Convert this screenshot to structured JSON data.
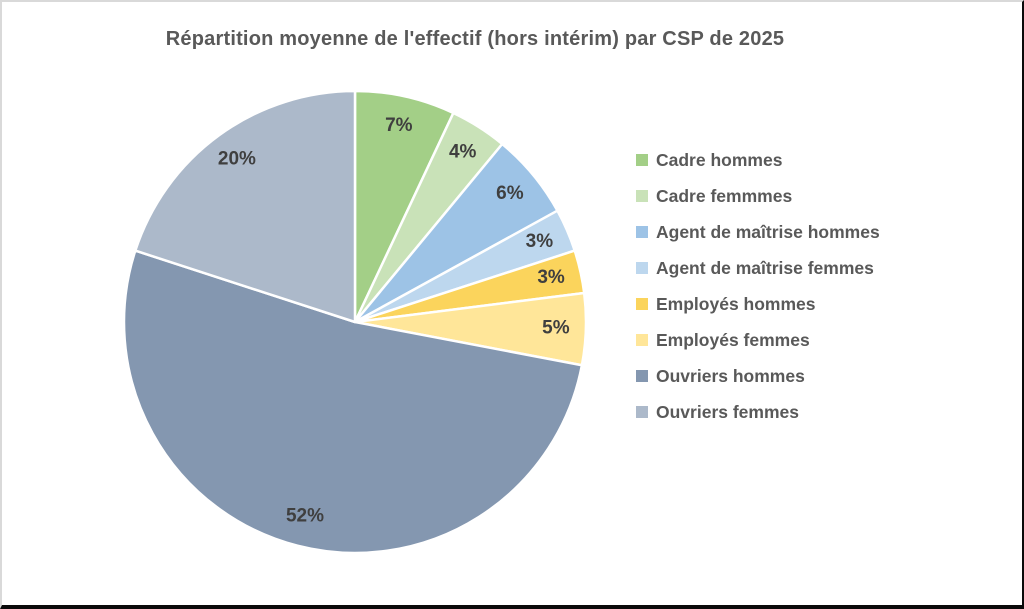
{
  "chart_data": {
    "type": "pie",
    "title": "Répartition moyenne de l'effectif (hors intérim) par CSP de 2025",
    "start_angle_deg": 0,
    "direction": "clockwise",
    "legend_position": "right",
    "title_color": "#595959",
    "data_label_color": "#3f3f3f",
    "slices": [
      {
        "label": "Cadre hommes",
        "value": 7,
        "data_label": "7%",
        "color": "#A3CF87"
      },
      {
        "label": "Cadre femmmes",
        "value": 4,
        "data_label": "4%",
        "color": "#C9E2B8"
      },
      {
        "label": "Agent de maîtrise hommes",
        "value": 6,
        "data_label": "6%",
        "color": "#9DC3E6"
      },
      {
        "label": "Agent de maîtrise femmes",
        "value": 3,
        "data_label": "3%",
        "color": "#BDD7EE"
      },
      {
        "label": "Employés hommes",
        "value": 3,
        "data_label": "3%",
        "color": "#FBD45C"
      },
      {
        "label": "Employés femmes",
        "value": 5,
        "data_label": "5%",
        "color": "#FFE699"
      },
      {
        "label": "Ouvriers hommes",
        "value": 52,
        "data_label": "52%",
        "color": "#8497B0"
      },
      {
        "label": "Ouvriers femmes",
        "value": 20,
        "data_label": "20%",
        "color": "#ACB9CA"
      }
    ]
  }
}
